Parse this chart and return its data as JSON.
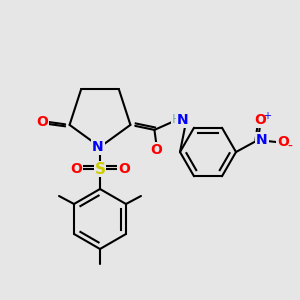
{
  "bg_color": "#e6e6e6",
  "bond_color": "#000000",
  "bond_width": 1.5,
  "atom_colors": {
    "C": "#000000",
    "N": "#0000ff",
    "O": "#ff0000",
    "S": "#cccc00",
    "H": "#7aafaf"
  },
  "font_size": 9
}
